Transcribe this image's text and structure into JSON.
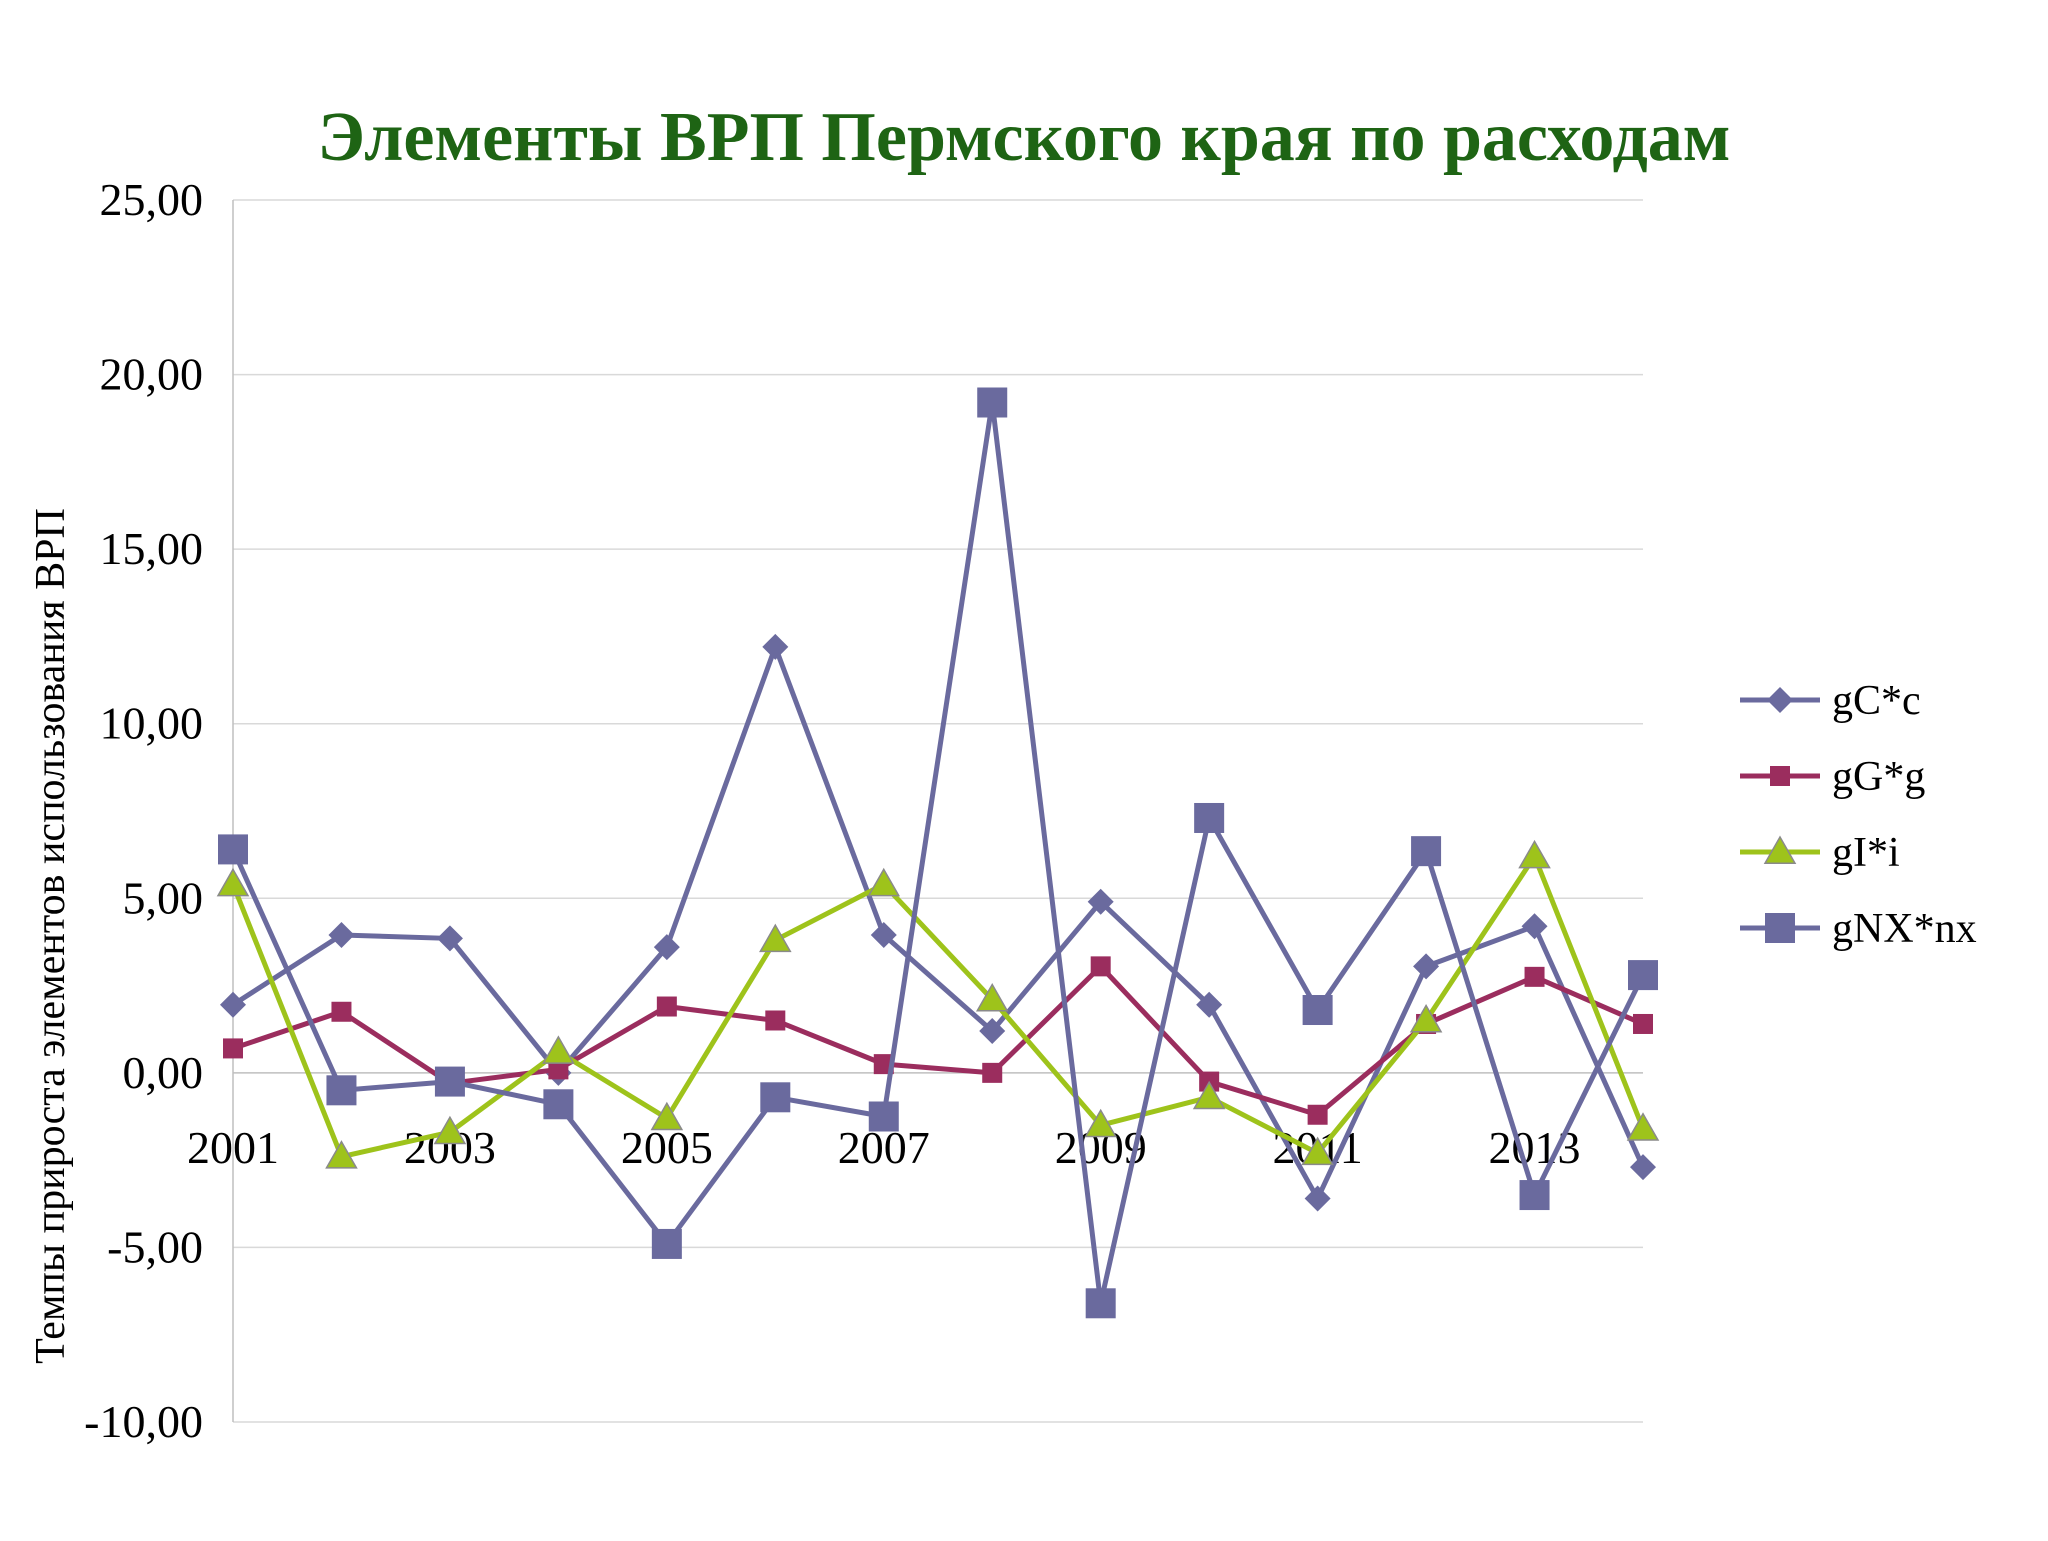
{
  "chart_data": {
    "type": "line",
    "title": "Элементы ВРП Пермского края по расходам",
    "title_color": "#1e6414",
    "ylabel": "Темпы прироста элементов использования ВРП",
    "xlabel": "",
    "x": [
      2001,
      2002,
      2003,
      2004,
      2005,
      2006,
      2007,
      2008,
      2009,
      2010,
      2011,
      2012,
      2013,
      2014
    ],
    "x_tick_labels": [
      "2001",
      "2003",
      "2005",
      "2007",
      "2009",
      "2011",
      "2013"
    ],
    "x_tick_years": [
      2001,
      2003,
      2005,
      2007,
      2009,
      2011,
      2013
    ],
    "ylim": [
      -10,
      25
    ],
    "y_ticks": [
      -10,
      -5,
      0,
      5,
      10,
      15,
      20,
      25
    ],
    "y_tick_labels": [
      "-10,00",
      "-5,00",
      "0,00",
      "5,00",
      "10,00",
      "15,00",
      "20,00",
      "25,00"
    ],
    "grid": "horizontal",
    "legend_position": "right",
    "series": [
      {
        "name": "gC*c",
        "color": "#6a6a9e",
        "marker": "diamond",
        "values": [
          1.95,
          3.95,
          3.85,
          0.0,
          3.6,
          12.2,
          3.95,
          1.2,
          4.9,
          1.95,
          -3.6,
          3.05,
          4.2,
          -2.7
        ]
      },
      {
        "name": "gG*g",
        "color": "#9b2d5e",
        "marker": "square",
        "values": [
          0.7,
          1.75,
          -0.3,
          0.1,
          1.9,
          1.5,
          0.25,
          0.0,
          3.05,
          -0.25,
          -1.2,
          1.4,
          2.75,
          1.4
        ]
      },
      {
        "name": "gI*i",
        "color": "#9ec31b",
        "marker": "triangle",
        "values": [
          5.4,
          -2.4,
          -1.7,
          0.6,
          -1.3,
          3.8,
          5.4,
          2.1,
          -1.5,
          -0.7,
          -2.3,
          1.5,
          6.2,
          -1.6
        ]
      },
      {
        "name": "gNX*nx",
        "color": "#6a6a9e",
        "marker": "big-square",
        "values": [
          6.4,
          -0.5,
          -0.25,
          -0.9,
          -4.9,
          -0.7,
          -1.25,
          19.2,
          -6.6,
          7.3,
          1.8,
          6.35,
          -3.5,
          2.8
        ]
      }
    ]
  }
}
